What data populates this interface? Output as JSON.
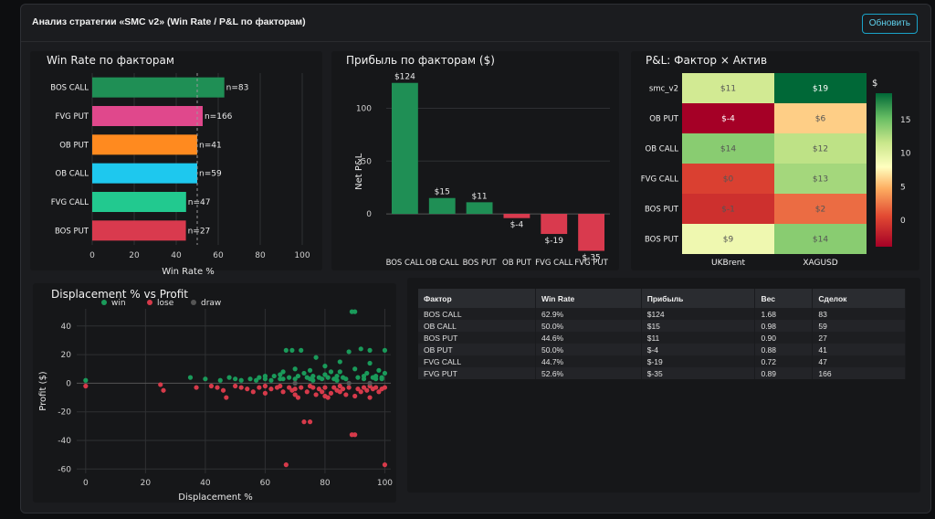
{
  "header": {
    "title": "Анализ стратегии «SMC v2» (Win Rate / P&L по факторам)",
    "refresh_label": "Обновить"
  },
  "colors": {
    "panel_bg": "#161719",
    "win": "#1a9a5a",
    "lose": "#d63a4a",
    "draw": "#555555"
  },
  "charts": {
    "winrate_title": "Win Rate по факторам",
    "profit_title": "Прибыль по факторам ($)",
    "heatmap_title": "P&L: Фактор × Актив",
    "scatter_title": "Displacement % vs Profit"
  },
  "chart_data": [
    {
      "type": "bar",
      "orientation": "horizontal",
      "categories": [
        "BOS CALL",
        "FVG PUT",
        "OB PUT",
        "OB CALL",
        "FVG CALL",
        "BOS PUT"
      ],
      "values": [
        62.9,
        52.6,
        50.0,
        50.0,
        44.7,
        44.6
      ],
      "labels": [
        "n=83",
        "n=166",
        "n=41",
        "n=59",
        "n=47",
        "n=27"
      ],
      "colors": [
        "#1f8f55",
        "#e0488c",
        "#ff8a1f",
        "#1ec8ee",
        "#22c98f",
        "#d93a4e"
      ],
      "xlabel": "Win Rate %",
      "xlim": [
        0,
        100
      ],
      "xticks": [
        0,
        20,
        40,
        60,
        80,
        100
      ],
      "reference_line": 50
    },
    {
      "type": "bar",
      "categories": [
        "BOS CALL",
        "OB CALL",
        "BOS PUT",
        "OB PUT",
        "FVG CALL",
        "FVG PUT"
      ],
      "values": [
        124,
        15,
        11,
        -4,
        -19,
        -35
      ],
      "labels": [
        "$124",
        "$15",
        "$11",
        "$-4",
        "$-19",
        "$-35"
      ],
      "ylabel": "Net P&L",
      "ylim": [
        -38,
        135
      ],
      "yticks": [
        0,
        50,
        100
      ],
      "positive_color": "#1f8f55",
      "negative_color": "#d93a4e"
    },
    {
      "type": "heatmap",
      "rows": [
        "smc_v2",
        "OB PUT",
        "OB CALL",
        "FVG CALL",
        "BOS PUT",
        "BOS PUT"
      ],
      "columns": [
        "UKBrent",
        "XAGUSD"
      ],
      "values": [
        [
          11,
          19
        ],
        [
          -4,
          6
        ],
        [
          14,
          12
        ],
        [
          0,
          13
        ],
        [
          -1,
          2
        ],
        [
          9,
          14
        ]
      ],
      "cell_labels": [
        [
          "$11",
          "$19"
        ],
        [
          "$-4",
          "$6"
        ],
        [
          "$14",
          "$12"
        ],
        [
          "$0",
          "$13"
        ],
        [
          "$-1",
          "$2"
        ],
        [
          "$9",
          "$14"
        ]
      ],
      "colorbar_title": "$",
      "colorbar_ticks": [
        0,
        5,
        10,
        15
      ],
      "zlim": [
        -4,
        19
      ],
      "colorscale": "RdYlGn"
    },
    {
      "type": "scatter",
      "legend": [
        "win",
        "lose",
        "draw"
      ],
      "xlabel": "Displacement %",
      "ylabel": "Profit ($)",
      "xlim": [
        -3,
        102
      ],
      "ylim": [
        -63,
        52
      ],
      "xticks": [
        0,
        20,
        40,
        60,
        80,
        100
      ],
      "yticks": [
        -60,
        -40,
        -20,
        0,
        20,
        40
      ],
      "win_points": [
        [
          0,
          2
        ],
        [
          35,
          4
        ],
        [
          40,
          3
        ],
        [
          45,
          2
        ],
        [
          48,
          4
        ],
        [
          50,
          3
        ],
        [
          52,
          2
        ],
        [
          55,
          3
        ],
        [
          58,
          4
        ],
        [
          60,
          3
        ],
        [
          62,
          2
        ],
        [
          63,
          5
        ],
        [
          65,
          3
        ],
        [
          66,
          8
        ],
        [
          67,
          23
        ],
        [
          68,
          4
        ],
        [
          69,
          23
        ],
        [
          70,
          3
        ],
        [
          71,
          5
        ],
        [
          72,
          23
        ],
        [
          73,
          7
        ],
        [
          74,
          4
        ],
        [
          75,
          3
        ],
        [
          76,
          5
        ],
        [
          77,
          18
        ],
        [
          78,
          4
        ],
        [
          79,
          3
        ],
        [
          80,
          6
        ],
        [
          81,
          4
        ],
        [
          82,
          8
        ],
        [
          83,
          3
        ],
        [
          84,
          5
        ],
        [
          85,
          15
        ],
        [
          86,
          4
        ],
        [
          87,
          3
        ],
        [
          88,
          22
        ],
        [
          89,
          50
        ],
        [
          90,
          50
        ],
        [
          91,
          4
        ],
        [
          92,
          24
        ],
        [
          93,
          5
        ],
        [
          94,
          7
        ],
        [
          95,
          23
        ],
        [
          96,
          4
        ],
        [
          97,
          5
        ],
        [
          98,
          9
        ],
        [
          99,
          4
        ],
        [
          100,
          23
        ],
        [
          100,
          7
        ],
        [
          95,
          14
        ],
        [
          90,
          10
        ],
        [
          85,
          8
        ],
        [
          80,
          12
        ],
        [
          75,
          9
        ],
        [
          70,
          10
        ],
        [
          65,
          6
        ],
        [
          60,
          5
        ],
        [
          93,
          3
        ],
        [
          97,
          3
        ],
        [
          99,
          3
        ],
        [
          84,
          2
        ],
        [
          76,
          2
        ],
        [
          66,
          3
        ],
        [
          57,
          2
        ]
      ],
      "lose_points": [
        [
          0,
          -2
        ],
        [
          25,
          -1
        ],
        [
          26,
          -5
        ],
        [
          37,
          -3
        ],
        [
          42,
          -2
        ],
        [
          44,
          -3
        ],
        [
          46,
          -5
        ],
        [
          47,
          -10
        ],
        [
          50,
          -2
        ],
        [
          52,
          -3
        ],
        [
          54,
          -4
        ],
        [
          56,
          -6
        ],
        [
          58,
          -3
        ],
        [
          60,
          -2
        ],
        [
          62,
          -4
        ],
        [
          64,
          -3
        ],
        [
          66,
          -6
        ],
        [
          67,
          -57
        ],
        [
          68,
          -3
        ],
        [
          69,
          -5
        ],
        [
          70,
          -4
        ],
        [
          71,
          -10
        ],
        [
          72,
          -3
        ],
        [
          73,
          -27
        ],
        [
          74,
          -6
        ],
        [
          75,
          -27
        ],
        [
          76,
          -3
        ],
        [
          77,
          -8
        ],
        [
          78,
          -4
        ],
        [
          79,
          -6
        ],
        [
          80,
          -3
        ],
        [
          81,
          -10
        ],
        [
          82,
          -7
        ],
        [
          83,
          -3
        ],
        [
          84,
          -5
        ],
        [
          85,
          -6
        ],
        [
          86,
          -4
        ],
        [
          87,
          -8
        ],
        [
          88,
          -3
        ],
        [
          89,
          -36
        ],
        [
          90,
          -36
        ],
        [
          91,
          -4
        ],
        [
          92,
          -6
        ],
        [
          93,
          -3
        ],
        [
          94,
          -5
        ],
        [
          95,
          -10
        ],
        [
          96,
          -4
        ],
        [
          97,
          -3
        ],
        [
          98,
          -6
        ],
        [
          99,
          -4
        ],
        [
          100,
          -57
        ],
        [
          100,
          -3
        ],
        [
          95,
          -2
        ],
        [
          85,
          -2
        ],
        [
          75,
          -2
        ],
        [
          65,
          -2
        ],
        [
          70,
          -8
        ],
        [
          80,
          -9
        ],
        [
          90,
          -9
        ],
        [
          60,
          -7
        ]
      ],
      "draw_points": [
        [
          88,
          0
        ],
        [
          95,
          0
        ],
        [
          70,
          0
        ]
      ]
    }
  ],
  "table": {
    "columns": [
      "Фактор",
      "Win Rate",
      "Прибыль",
      "Вес",
      "Сделок"
    ],
    "rows": [
      [
        "BOS CALL",
        "62.9%",
        "$124",
        "1.68",
        "83"
      ],
      [
        "OB CALL",
        "50.0%",
        "$15",
        "0.98",
        "59"
      ],
      [
        "BOS PUT",
        "44.6%",
        "$11",
        "0.90",
        "27"
      ],
      [
        "OB PUT",
        "50.0%",
        "$-4",
        "0.88",
        "41"
      ],
      [
        "FVG CALL",
        "44.7%",
        "$-19",
        "0.72",
        "47"
      ],
      [
        "FVG PUT",
        "52.6%",
        "$-35",
        "0.89",
        "166"
      ]
    ]
  }
}
